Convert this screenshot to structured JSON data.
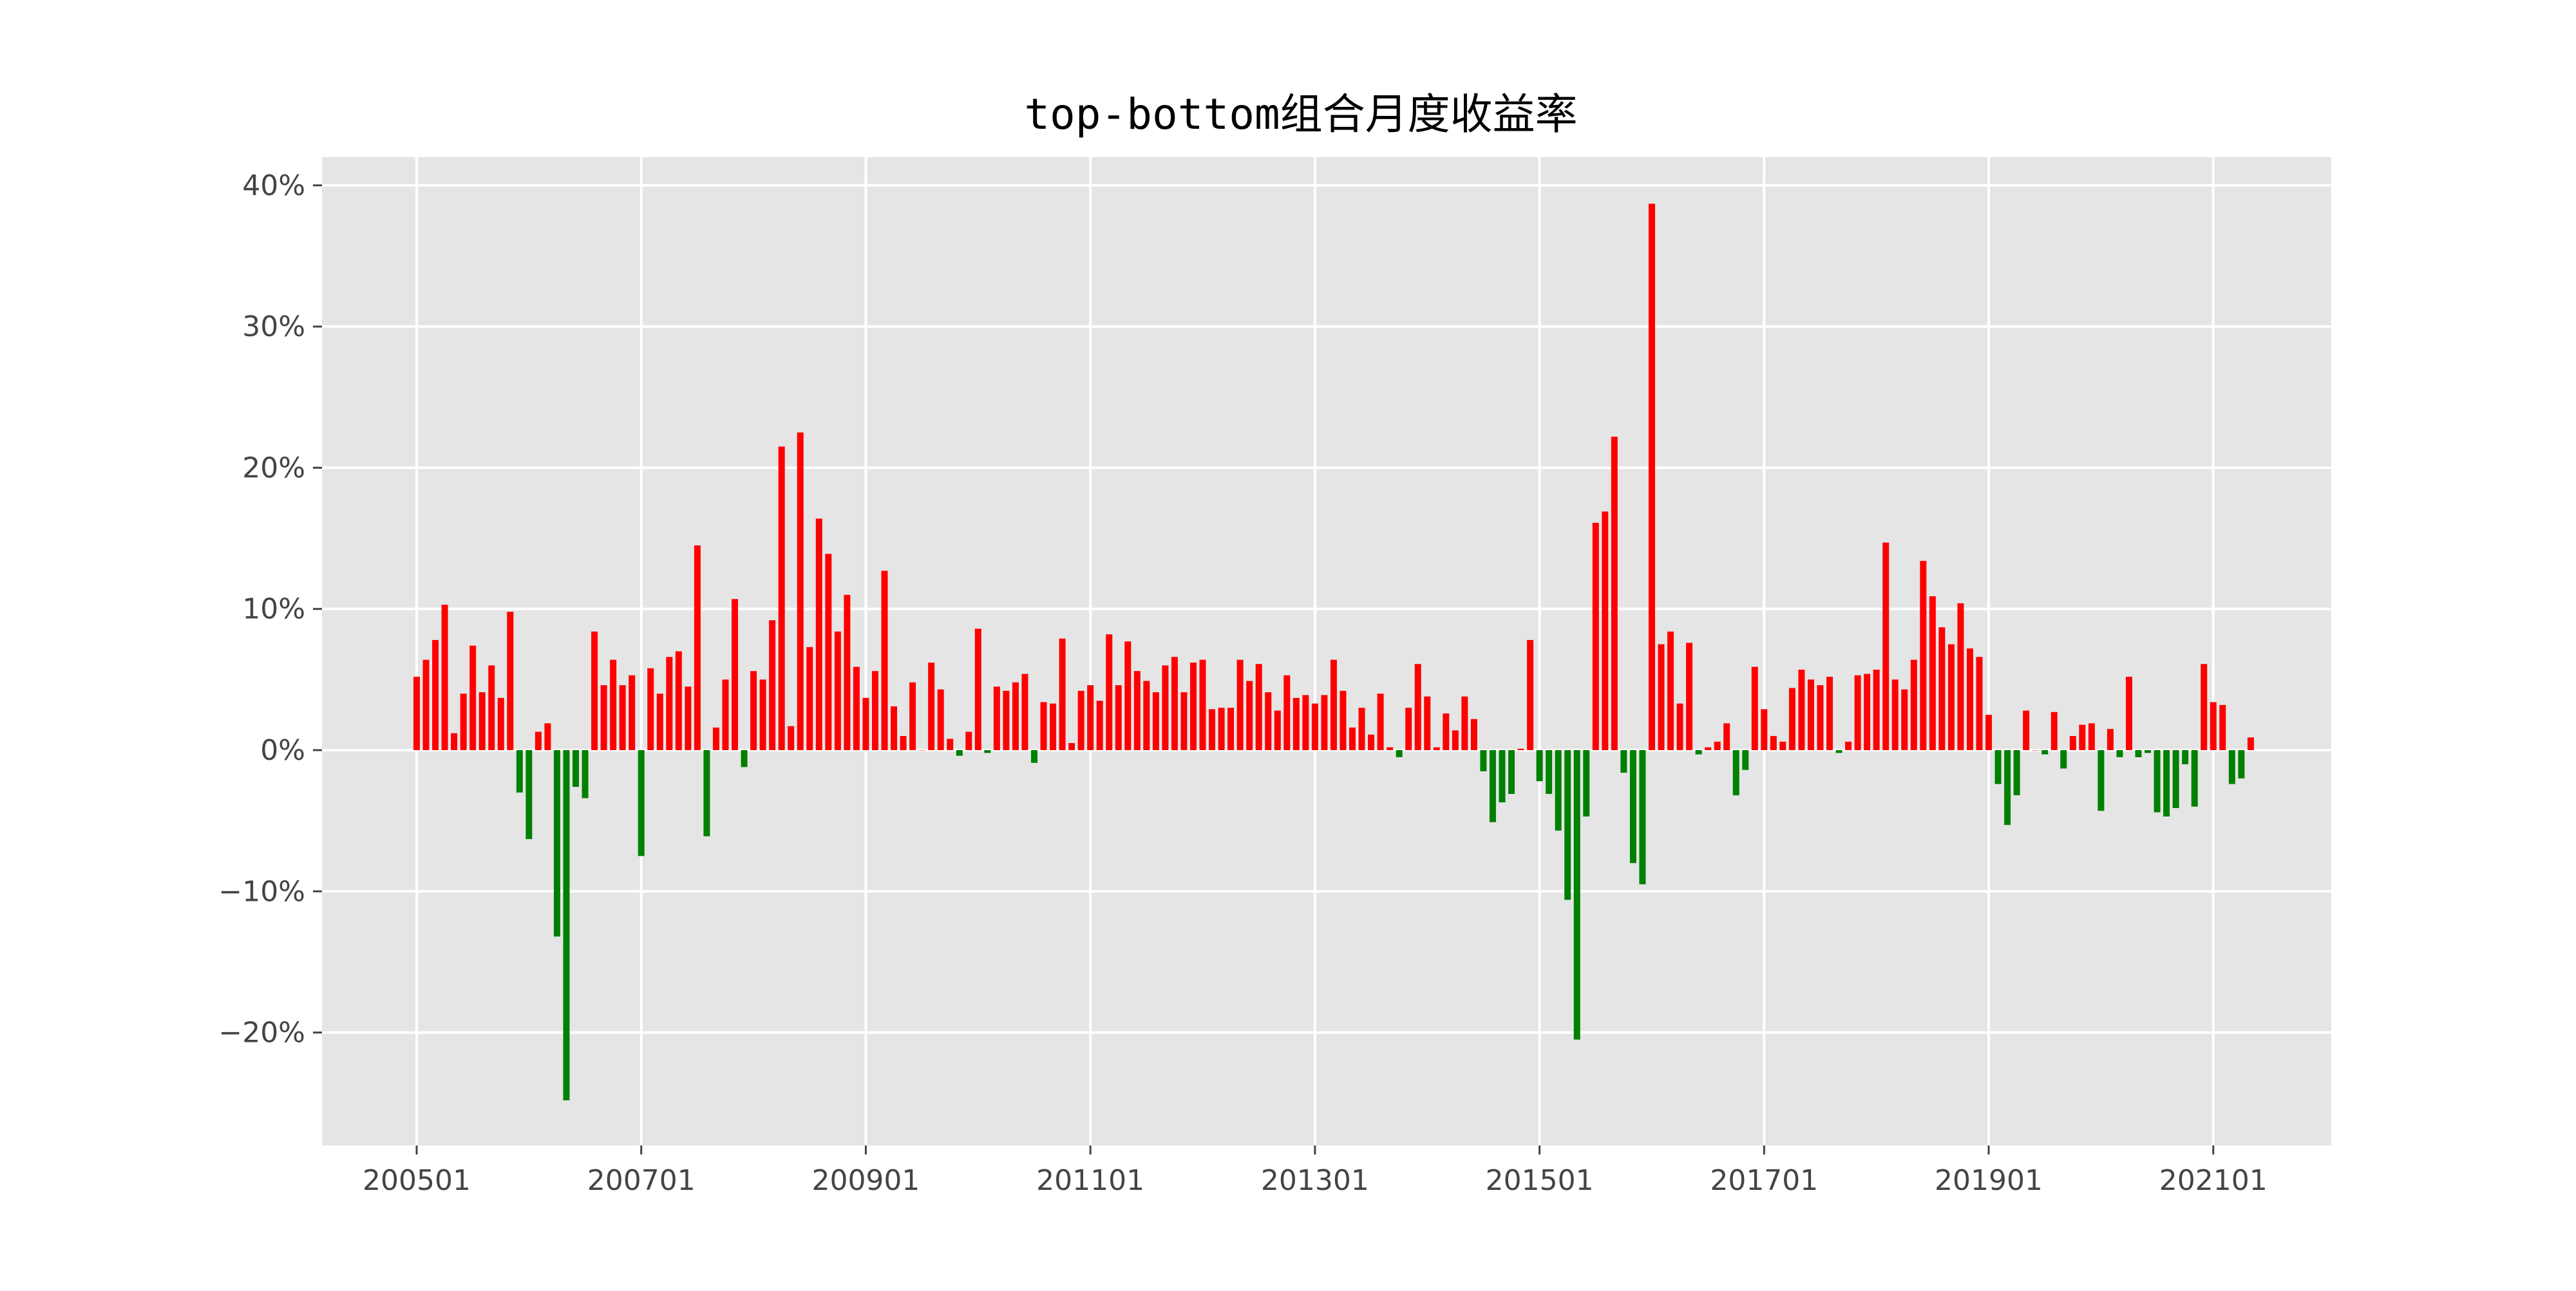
{
  "colors": {
    "positive": "#ff0000",
    "negative": "#008000",
    "plot_background": "#e5e5e5",
    "grid": "#ffffff",
    "tick_text": "#444444"
  },
  "chart_data": {
    "type": "bar",
    "title": "top-bottom组合月度收益率",
    "xlabel": "",
    "ylabel": "",
    "y_unit": "percent",
    "ylim": [
      -28,
      42
    ],
    "yticks": [
      40,
      30,
      20,
      10,
      0,
      -10,
      -20
    ],
    "ytick_labels": [
      "40%",
      "30%",
      "20%",
      "10%",
      "0%",
      "−10%",
      "−20%"
    ],
    "xticks": [
      "200501",
      "200701",
      "200901",
      "201101",
      "201301",
      "201501",
      "201701",
      "201901",
      "202101"
    ],
    "grid": true,
    "legend": "none",
    "start_month": "200501",
    "values": [
      5.2,
      6.4,
      7.8,
      10.3,
      1.2,
      4.0,
      7.4,
      4.1,
      6.0,
      3.7,
      9.8,
      -3.0,
      -6.3,
      1.3,
      1.9,
      -13.2,
      -24.8,
      -2.6,
      -3.4,
      8.4,
      4.6,
      6.4,
      4.6,
      5.3,
      -7.5,
      5.8,
      4.0,
      6.6,
      7.0,
      4.5,
      14.5,
      -6.1,
      1.6,
      5.0,
      10.7,
      -1.2,
      5.6,
      5.0,
      9.2,
      21.5,
      1.7,
      22.5,
      7.3,
      16.4,
      13.9,
      8.4,
      11.0,
      5.9,
      3.7,
      5.6,
      12.7,
      3.1,
      1.0,
      4.8,
      0.0,
      6.2,
      4.3,
      0.8,
      -0.4,
      1.3,
      8.6,
      -0.2,
      4.5,
      4.2,
      4.8,
      5.4,
      -0.9,
      3.4,
      3.3,
      7.9,
      0.5,
      4.2,
      4.6,
      3.5,
      8.2,
      4.6,
      7.7,
      5.6,
      4.9,
      4.1,
      6.0,
      6.6,
      4.1,
      6.2,
      6.4,
      2.9,
      3.0,
      3.0,
      6.4,
      4.9,
      6.1,
      4.1,
      2.8,
      5.3,
      3.7,
      3.9,
      3.3,
      3.9,
      6.4,
      4.2,
      1.6,
      3.0,
      1.1,
      4.0,
      0.2,
      -0.5,
      3.0,
      6.1,
      3.8,
      0.2,
      2.6,
      1.4,
      3.8,
      2.2,
      -1.5,
      -5.1,
      -3.7,
      -3.1,
      0.1,
      7.8,
      -2.2,
      -3.1,
      -5.7,
      -10.6,
      -20.5,
      -4.7,
      16.1,
      16.9,
      22.2,
      -1.6,
      -8.0,
      -9.5,
      38.7,
      7.5,
      8.4,
      3.3,
      7.6,
      -0.3,
      0.2,
      0.6,
      1.9,
      -3.2,
      -1.4,
      5.9,
      2.9,
      1.0,
      0.6,
      4.4,
      5.7,
      5.0,
      4.6,
      5.2,
      -0.2,
      0.6,
      5.3,
      5.4,
      5.7,
      14.7,
      5.0,
      4.3,
      6.4,
      13.4,
      10.9,
      8.7,
      7.5,
      10.4,
      7.2,
      6.6,
      2.5,
      -2.4,
      -5.3,
      -3.2,
      2.8,
      0.0,
      -0.3,
      2.7,
      -1.3,
      1.0,
      1.8,
      1.9,
      -4.3,
      1.5,
      -0.5,
      5.2,
      -0.5,
      -0.2,
      -4.4,
      -4.7,
      -4.1,
      -1.0,
      -4.0,
      6.1,
      3.4,
      3.2,
      -2.4,
      -2.0,
      0.9
    ]
  }
}
